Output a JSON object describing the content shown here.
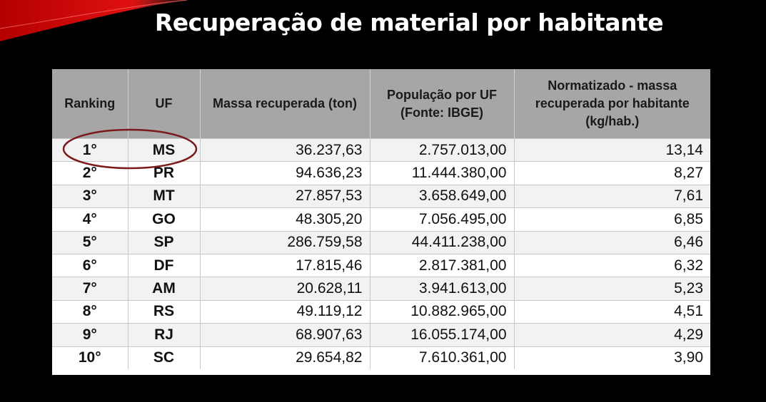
{
  "slide": {
    "title": "Recuperação de material por habitante",
    "accent_color": "#d40000",
    "highlight_color": "#7a1a1a"
  },
  "chart_data": {
    "type": "table",
    "title": "Recuperação de material por habitante",
    "columns": [
      "Ranking",
      "UF",
      "Massa recuperada (ton)",
      "População por UF (Fonte: IBGE)",
      "Normatizado - massa recuperada por habitante (kg/hab.)"
    ],
    "rows": [
      {
        "rank": "1°",
        "uf": "MS",
        "massa": "36.237,63",
        "populacao": "2.757.013,00",
        "normatizado": "13,14"
      },
      {
        "rank": "2°",
        "uf": "PR",
        "massa": "94.636,23",
        "populacao": "11.444.380,00",
        "normatizado": "8,27"
      },
      {
        "rank": "3°",
        "uf": "MT",
        "massa": "27.857,53",
        "populacao": "3.658.649,00",
        "normatizado": "7,61"
      },
      {
        "rank": "4°",
        "uf": "GO",
        "massa": "48.305,20",
        "populacao": "7.056.495,00",
        "normatizado": "6,85"
      },
      {
        "rank": "5°",
        "uf": "SP",
        "massa": "286.759,58",
        "populacao": "44.411.238,00",
        "normatizado": "6,46"
      },
      {
        "rank": "6°",
        "uf": "DF",
        "massa": "17.815,46",
        "populacao": "2.817.381,00",
        "normatizado": "6,32"
      },
      {
        "rank": "7°",
        "uf": "AM",
        "massa": "20.628,11",
        "populacao": "3.941.613,00",
        "normatizado": "5,23"
      },
      {
        "rank": "8°",
        "uf": "RS",
        "massa": "49.119,12",
        "populacao": "10.882.965,00",
        "normatizado": "4,51"
      },
      {
        "rank": "9°",
        "uf": "RJ",
        "massa": "68.907,63",
        "populacao": "16.055.174,00",
        "normatizado": "4,29"
      },
      {
        "rank": "10°",
        "uf": "SC",
        "massa": "29.654,82",
        "populacao": "7.610.361,00",
        "normatizado": "3,90"
      }
    ],
    "highlighted_row": 0
  }
}
